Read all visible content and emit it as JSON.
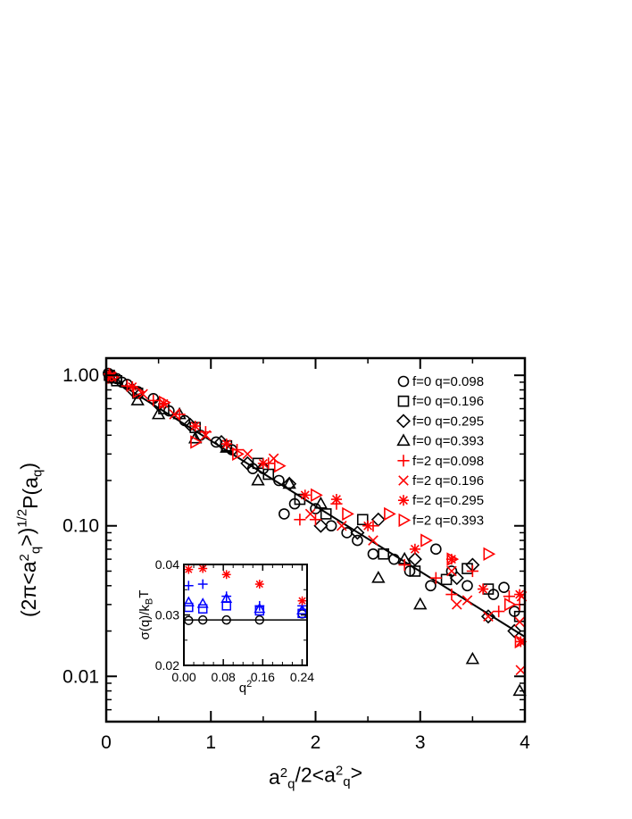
{
  "chart_data": [
    {
      "type": "scatter",
      "scale": {
        "x": "linear",
        "y": "log"
      },
      "xlim": [
        0,
        4
      ],
      "ylim": [
        0.005,
        1.3
      ],
      "x_ticks": [
        {
          "value": 0,
          "label": "0"
        },
        {
          "value": 1,
          "label": "1"
        },
        {
          "value": 2,
          "label": "2"
        },
        {
          "value": 3,
          "label": "3"
        },
        {
          "value": 4,
          "label": "4"
        }
      ],
      "y_ticks": [
        {
          "value": 1.0,
          "label": "1.00"
        },
        {
          "value": 0.1,
          "label": "0.10"
        },
        {
          "value": 0.01,
          "label": "0.01"
        }
      ],
      "xlabel": {
        "parts": [
          {
            "t": "a",
            "s": "n"
          },
          {
            "t": "2",
            "s": "sup"
          },
          {
            "t": "q",
            "s": "sub"
          },
          {
            "t": "/2<a",
            "s": "n"
          },
          {
            "t": "2",
            "s": "sup"
          },
          {
            "t": "q",
            "s": "sub"
          },
          {
            "t": ">",
            "s": "n"
          }
        ]
      },
      "ylabel": {
        "parts": [
          {
            "t": "(2π<a",
            "s": "n"
          },
          {
            "t": "2",
            "s": "sup"
          },
          {
            "t": "q",
            "s": "sub"
          },
          {
            "t": ">)",
            "s": "n"
          },
          {
            "t": "1/2",
            "s": "sup"
          },
          {
            "t": "P(a",
            "s": "n"
          },
          {
            "t": "q",
            "s": "sub"
          },
          {
            "t": ")",
            "s": "n"
          }
        ]
      },
      "fit_line": {
        "x": [
          0,
          4
        ],
        "y": [
          1.0,
          0.0183
        ]
      },
      "legend_position": "top-right",
      "series": [
        {
          "name": "f=0 q=0.098",
          "marker": "circle",
          "color": "#000000",
          "points": [
            [
              0.02,
              1.03
            ],
            [
              0.06,
              0.98
            ],
            [
              0.1,
              0.95
            ],
            [
              0.15,
              0.9
            ],
            [
              0.2,
              0.87
            ],
            [
              0.3,
              0.78
            ],
            [
              0.45,
              0.7
            ],
            [
              0.6,
              0.58
            ],
            [
              0.75,
              0.5
            ],
            [
              0.9,
              0.4
            ],
            [
              1.05,
              0.36
            ],
            [
              1.2,
              0.32
            ],
            [
              1.4,
              0.24
            ],
            [
              1.5,
              0.24
            ],
            [
              1.65,
              0.2
            ],
            [
              1.7,
              0.12
            ],
            [
              1.8,
              0.14
            ],
            [
              2.0,
              0.13
            ],
            [
              2.15,
              0.1
            ],
            [
              2.3,
              0.09
            ],
            [
              2.4,
              0.08
            ],
            [
              2.55,
              0.065
            ],
            [
              2.75,
              0.06
            ],
            [
              2.9,
              0.05
            ],
            [
              3.1,
              0.04
            ],
            [
              3.15,
              0.07
            ],
            [
              3.3,
              0.05
            ],
            [
              3.45,
              0.04
            ],
            [
              3.7,
              0.035
            ],
            [
              3.8,
              0.039
            ],
            [
              3.9,
              0.027
            ]
          ]
        },
        {
          "name": "f=0 q=0.196",
          "marker": "square",
          "color": "#000000",
          "points": [
            [
              0.03,
              1.0
            ],
            [
              0.1,
              0.92
            ],
            [
              0.3,
              0.76
            ],
            [
              0.55,
              0.6
            ],
            [
              0.85,
              0.45
            ],
            [
              1.15,
              0.34
            ],
            [
              1.45,
              0.26
            ],
            [
              1.55,
              0.22
            ],
            [
              1.85,
              0.15
            ],
            [
              2.1,
              0.12
            ],
            [
              2.45,
              0.11
            ],
            [
              2.65,
              0.065
            ],
            [
              2.95,
              0.05
            ],
            [
              3.25,
              0.044
            ],
            [
              3.45,
              0.052
            ],
            [
              3.65,
              0.038
            ],
            [
              3.95,
              0.025
            ]
          ]
        },
        {
          "name": "f=0 q=0.295",
          "marker": "diamond",
          "color": "#000000",
          "points": [
            [
              0.05,
              0.97
            ],
            [
              0.25,
              0.8
            ],
            [
              0.5,
              0.64
            ],
            [
              0.8,
              0.47
            ],
            [
              1.1,
              0.36
            ],
            [
              1.35,
              0.26
            ],
            [
              1.75,
              0.19
            ],
            [
              2.05,
              0.1
            ],
            [
              2.4,
              0.09
            ],
            [
              2.6,
              0.11
            ],
            [
              2.95,
              0.06
            ],
            [
              3.35,
              0.045
            ],
            [
              3.5,
              0.055
            ],
            [
              3.65,
              0.025
            ],
            [
              3.9,
              0.02
            ]
          ]
        },
        {
          "name": "f=0 q=0.393",
          "marker": "triangle",
          "color": "#000000",
          "points": [
            [
              0.08,
              0.95
            ],
            [
              0.3,
              0.68
            ],
            [
              0.5,
              0.55
            ],
            [
              0.7,
              0.55
            ],
            [
              0.85,
              0.38
            ],
            [
              1.15,
              0.33
            ],
            [
              1.45,
              0.2
            ],
            [
              1.75,
              0.19
            ],
            [
              2.05,
              0.14
            ],
            [
              2.6,
              0.045
            ],
            [
              2.85,
              0.06
            ],
            [
              3.0,
              0.03
            ],
            [
              3.5,
              0.013
            ],
            [
              3.95,
              0.008
            ]
          ]
        },
        {
          "name": "f=2 q=0.098",
          "marker": "plus",
          "color": "#ff0000",
          "points": [
            [
              0.03,
              1.02
            ],
            [
              0.2,
              0.85
            ],
            [
              0.45,
              0.68
            ],
            [
              0.7,
              0.55
            ],
            [
              0.95,
              0.42
            ],
            [
              1.25,
              0.32
            ],
            [
              1.55,
              0.26
            ],
            [
              1.85,
              0.11
            ],
            [
              2.0,
              0.11
            ],
            [
              2.2,
              0.14
            ],
            [
              2.55,
              0.1
            ],
            [
              2.85,
              0.055
            ],
            [
              3.15,
              0.045
            ],
            [
              3.3,
              0.035
            ],
            [
              3.5,
              0.05
            ],
            [
              3.75,
              0.027
            ],
            [
              3.85,
              0.034
            ],
            [
              3.95,
              0.03
            ]
          ]
        },
        {
          "name": "f=2 q=0.196",
          "marker": "x",
          "color": "#ff0000",
          "points": [
            [
              0.05,
              0.98
            ],
            [
              0.35,
              0.75
            ],
            [
              0.65,
              0.55
            ],
            [
              0.95,
              0.4
            ],
            [
              1.35,
              0.3
            ],
            [
              1.6,
              0.28
            ],
            [
              1.95,
              0.12
            ],
            [
              2.25,
              0.1
            ],
            [
              2.55,
              0.08
            ],
            [
              3.3,
              0.05
            ],
            [
              3.35,
              0.03
            ],
            [
              3.45,
              0.032
            ],
            [
              3.65,
              0.025
            ],
            [
              3.95,
              0.023
            ],
            [
              3.96,
              0.011
            ],
            [
              3.97,
              0.034
            ]
          ]
        },
        {
          "name": "f=2 q=0.295",
          "marker": "star",
          "color": "#ff0000",
          "points": [
            [
              0.04,
              0.99
            ],
            [
              0.25,
              0.84
            ],
            [
              0.55,
              0.65
            ],
            [
              0.85,
              0.46
            ],
            [
              1.15,
              0.35
            ],
            [
              1.5,
              0.26
            ],
            [
              1.9,
              0.16
            ],
            [
              2.2,
              0.15
            ],
            [
              2.5,
              0.1
            ],
            [
              2.95,
              0.07
            ],
            [
              3.3,
              0.06
            ],
            [
              3.6,
              0.038
            ],
            [
              3.95,
              0.035
            ],
            [
              3.96,
              0.017
            ]
          ]
        },
        {
          "name": "f=2 q=0.393",
          "marker": "tri-right",
          "color": "#ff0000",
          "points": [
            [
              0.06,
              0.97
            ],
            [
              0.3,
              0.78
            ],
            [
              0.55,
              0.66
            ],
            [
              0.85,
              0.36
            ],
            [
              1.25,
              0.3
            ],
            [
              1.65,
              0.25
            ],
            [
              2.0,
              0.16
            ],
            [
              2.3,
              0.12
            ],
            [
              2.7,
              0.12
            ],
            [
              3.05,
              0.08
            ],
            [
              3.3,
              0.06
            ],
            [
              3.65,
              0.065
            ],
            [
              3.85,
              0.03
            ],
            [
              3.95,
              0.017
            ]
          ]
        }
      ]
    },
    {
      "type": "scatter",
      "scale": {
        "x": "linear",
        "y": "linear"
      },
      "xlim": [
        0.0,
        0.25
      ],
      "ylim": [
        0.02,
        0.04
      ],
      "x_ticks": [
        {
          "value": 0.0,
          "label": "0.00"
        },
        {
          "value": 0.08,
          "label": "0.08"
        },
        {
          "value": 0.16,
          "label": "0.16"
        },
        {
          "value": 0.24,
          "label": "0.24"
        }
      ],
      "y_ticks": [
        {
          "value": 0.02,
          "label": "0.02"
        },
        {
          "value": 0.03,
          "label": "0.03"
        },
        {
          "value": 0.04,
          "label": "0.04"
        }
      ],
      "xlabel": {
        "parts": [
          {
            "t": "q",
            "s": "n"
          },
          {
            "t": "2",
            "s": "sup"
          }
        ]
      },
      "ylabel": {
        "parts": [
          {
            "t": "σ(q)/k",
            "s": "n"
          },
          {
            "t": "B",
            "s": "sub"
          },
          {
            "t": "T",
            "s": "n"
          }
        ]
      },
      "hline": 0.029,
      "series": [
        {
          "marker": "circle",
          "color": "#000000",
          "points": [
            [
              0.0096,
              0.0289
            ],
            [
              0.0384,
              0.029
            ],
            [
              0.0864,
              0.029
            ],
            [
              0.1536,
              0.029
            ],
            [
              0.2401,
              0.0302
            ]
          ]
        },
        {
          "marker": "square",
          "color": "#0000ff",
          "points": [
            [
              0.0096,
              0.0315
            ],
            [
              0.0384,
              0.0312
            ],
            [
              0.0864,
              0.0318
            ],
            [
              0.1536,
              0.0308
            ],
            [
              0.2401,
              0.0303
            ]
          ]
        },
        {
          "marker": "triangle",
          "color": "#0000ff",
          "points": [
            [
              0.0096,
              0.0325
            ],
            [
              0.0384,
              0.0322
            ],
            [
              0.0864,
              0.0332
            ],
            [
              0.1536,
              0.0312
            ],
            [
              0.2401,
              0.0309
            ]
          ]
        },
        {
          "marker": "plus",
          "color": "#0000ff",
          "points": [
            [
              0.0096,
              0.0358
            ],
            [
              0.0384,
              0.0361
            ],
            [
              0.0864,
              0.0337
            ],
            [
              0.1536,
              0.0318
            ],
            [
              0.2401,
              0.0318
            ]
          ]
        },
        {
          "marker": "star",
          "color": "#ff0000",
          "points": [
            [
              0.0096,
              0.039
            ],
            [
              0.0384,
              0.0392
            ],
            [
              0.0864,
              0.038
            ],
            [
              0.1536,
              0.0361
            ],
            [
              0.2401,
              0.0328
            ]
          ]
        }
      ]
    }
  ]
}
